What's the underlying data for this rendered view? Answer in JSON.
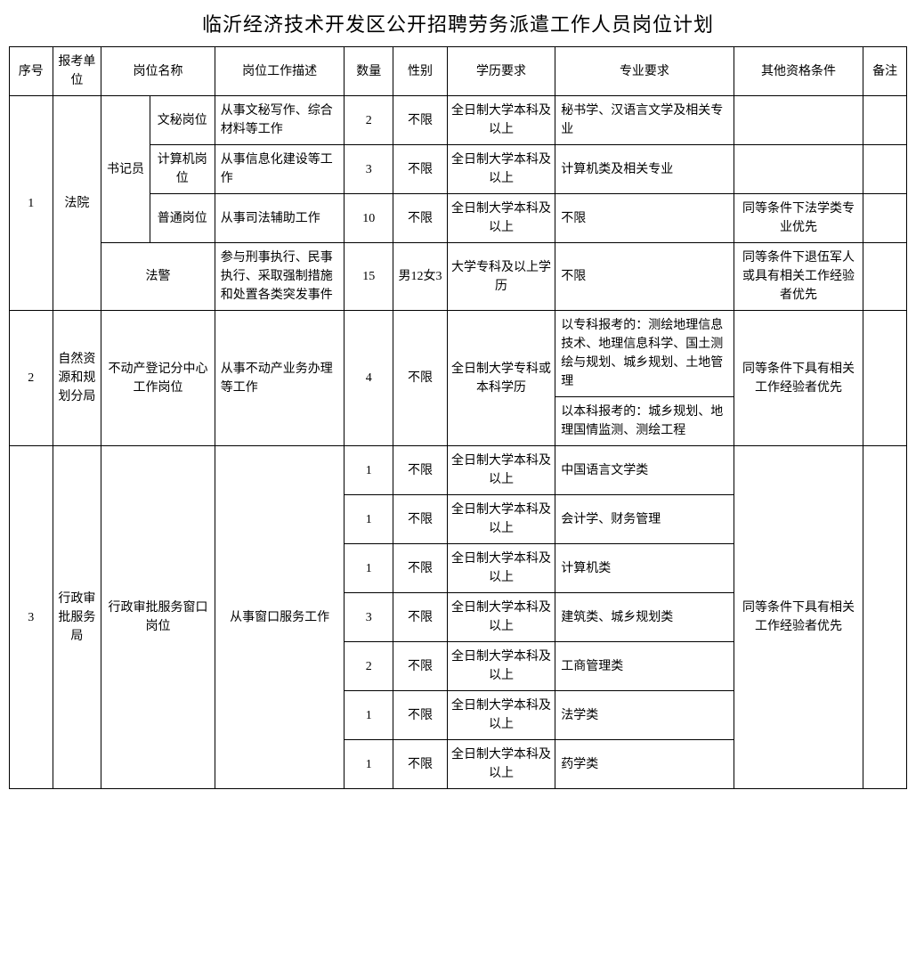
{
  "title": "临沂经济技术开发区公开招聘劳务派遣工作人员岗位计划",
  "headers": {
    "seq": "序号",
    "unit": "报考单位",
    "posname": "岗位名称",
    "desc": "岗位工作描述",
    "qty": "数量",
    "gender": "性别",
    "edu": "学历要求",
    "major": "专业要求",
    "other": "其他资格条件",
    "note": "备注"
  },
  "rows": {
    "r1": {
      "seq": "1",
      "unit": "法院",
      "subunit": "书记员",
      "pos": "文秘岗位",
      "desc": "从事文秘写作、综合材料等工作",
      "qty": "2",
      "gender": "不限",
      "edu": "全日制大学本科及以上",
      "major": "秘书学、汉语言文学及相关专业",
      "other": "",
      "note": ""
    },
    "r2": {
      "pos": "计算机岗位",
      "desc": "从事信息化建设等工作",
      "qty": "3",
      "gender": "不限",
      "edu": "全日制大学本科及以上",
      "major": "计算机类及相关专业",
      "other": "",
      "note": ""
    },
    "r3": {
      "pos": "普通岗位",
      "desc": "从事司法辅助工作",
      "qty": "10",
      "gender": "不限",
      "edu": "全日制大学本科及以上",
      "major": "不限",
      "other": "同等条件下法学类专业优先",
      "note": ""
    },
    "r4": {
      "pos": "法警",
      "desc": "参与刑事执行、民事执行、采取强制措施和处置各类突发事件",
      "qty": "15",
      "gender": "男12女3",
      "edu": "大学专科及以上学历",
      "major": "不限",
      "other": "同等条件下退伍军人或具有相关工作经验者优先",
      "note": ""
    },
    "r5": {
      "seq": "2",
      "unit": "自然资源和规划分局",
      "pos": "不动产登记分中心工作岗位",
      "desc": "从事不动产业务办理等工作",
      "qty": "4",
      "gender": "不限",
      "edu": "全日制大学专科或本科学历",
      "major1": "以专科报考的：测绘地理信息技术、地理信息科学、国土测绘与规划、城乡规划、土地管理",
      "major2": "以本科报考的：城乡规划、地理国情监测、测绘工程",
      "other": "同等条件下具有相关工作经验者优先",
      "note": ""
    },
    "r6": {
      "seq": "3",
      "unit": "行政审批服务局",
      "pos": "行政审批服务窗口岗位",
      "desc": "从事窗口服务工作",
      "qty": "1",
      "gender": "不限",
      "edu": "全日制大学本科及以上",
      "major": "中国语言文学类",
      "other": "同等条件下具有相关工作经验者优先",
      "note": ""
    },
    "r7": {
      "qty": "1",
      "gender": "不限",
      "edu": "全日制大学本科及以上",
      "major": "会计学、财务管理"
    },
    "r8": {
      "qty": "1",
      "gender": "不限",
      "edu": "全日制大学本科及以上",
      "major": "计算机类"
    },
    "r9": {
      "qty": "3",
      "gender": "不限",
      "edu": "全日制大学本科及以上",
      "major": "建筑类、城乡规划类"
    },
    "r10": {
      "qty": "2",
      "gender": "不限",
      "edu": "全日制大学本科及以上",
      "major": "工商管理类"
    },
    "r11": {
      "qty": "1",
      "gender": "不限",
      "edu": "全日制大学本科及以上",
      "major": "法学类"
    },
    "r12": {
      "qty": "1",
      "gender": "不限",
      "edu": "全日制大学本科及以上",
      "major": "药学类"
    }
  }
}
